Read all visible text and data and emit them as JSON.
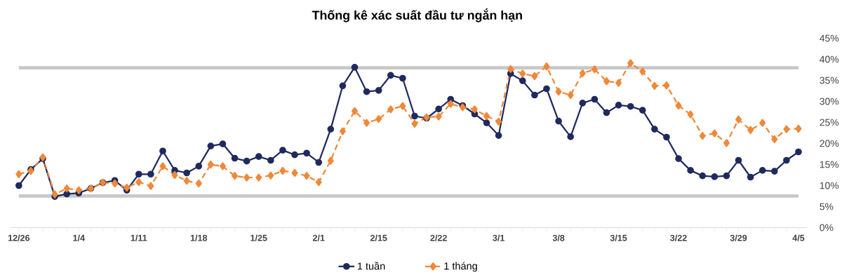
{
  "chart_data": {
    "type": "line",
    "title": "Thống kê xác suất đầu tư ngắn hạn",
    "categories": [
      "12/26",
      null,
      null,
      null,
      null,
      "1/4",
      null,
      null,
      null,
      null,
      "1/11",
      null,
      null,
      null,
      null,
      "1/18",
      null,
      null,
      null,
      null,
      "1/25",
      null,
      null,
      null,
      null,
      "2/1",
      null,
      null,
      null,
      null,
      "2/15",
      null,
      null,
      null,
      null,
      "2/22",
      null,
      null,
      null,
      null,
      "3/1",
      null,
      null,
      null,
      null,
      "3/8",
      null,
      null,
      null,
      null,
      "3/15",
      null,
      null,
      null,
      null,
      "3/22",
      null,
      null,
      null,
      null,
      "3/29",
      null,
      null,
      null,
      null,
      "4/5"
    ],
    "series": [
      {
        "name": "1 tuần",
        "color": "#1f2a5e",
        "marker": "circle",
        "line_style": "solid",
        "values": [
          10.0,
          13.8,
          16.4,
          7.4,
          8.0,
          8.2,
          9.3,
          10.7,
          11.2,
          8.9,
          12.7,
          12.7,
          18.2,
          13.6,
          13.0,
          14.6,
          19.4,
          19.9,
          16.5,
          15.8,
          16.9,
          16.0,
          18.4,
          17.3,
          17.7,
          15.5,
          23.4,
          33.7,
          38.1,
          32.3,
          32.6,
          36.2,
          35.5,
          26.5,
          26.0,
          28.2,
          30.5,
          29.0,
          27.0,
          24.9,
          21.9,
          36.6,
          34.9,
          31.5,
          33.0,
          25.3,
          21.6,
          29.6,
          30.5,
          27.3,
          29.1,
          28.8,
          27.9,
          23.4,
          21.5,
          16.4,
          13.6,
          12.3,
          12.1,
          12.3,
          16.0,
          12.0,
          13.6,
          13.4,
          16.0,
          18.0
        ]
      },
      {
        "name": "1 tháng",
        "color": "#f0883a",
        "marker": "diamond",
        "line_style": "dashed",
        "values": [
          12.7,
          13.5,
          16.7,
          7.9,
          9.3,
          8.9,
          9.3,
          10.7,
          10.5,
          9.5,
          10.8,
          9.9,
          14.6,
          12.5,
          11.1,
          10.5,
          15.0,
          14.6,
          12.3,
          11.9,
          11.9,
          12.4,
          13.5,
          13.0,
          12.3,
          10.8,
          15.9,
          22.9,
          27.7,
          24.9,
          25.8,
          28.1,
          28.9,
          24.7,
          26.2,
          26.4,
          29.4,
          28.6,
          28.1,
          26.5,
          25.2,
          37.7,
          36.6,
          36.0,
          38.3,
          32.3,
          31.5,
          36.7,
          37.6,
          34.8,
          34.4,
          39.1,
          37.1,
          33.7,
          33.8,
          29.0,
          26.9,
          21.8,
          22.4,
          20.1,
          25.7,
          23.2,
          24.9,
          21.0,
          23.4,
          23.5
        ]
      }
    ],
    "ylim": [
      0,
      45
    ],
    "yticks": [
      {
        "value": 0,
        "label": "0%"
      },
      {
        "value": 5,
        "label": "5%"
      },
      {
        "value": 10,
        "label": "10%"
      },
      {
        "value": 15,
        "label": "15%"
      },
      {
        "value": 20,
        "label": "20%"
      },
      {
        "value": 25,
        "label": "25%"
      },
      {
        "value": 30,
        "label": "30%"
      },
      {
        "value": 35,
        "label": "35%"
      },
      {
        "value": 40,
        "label": "40%"
      },
      {
        "value": 45,
        "label": "45%"
      }
    ],
    "ref_lines": [
      {
        "axis": "y",
        "value": 38,
        "color": "#c8c8c8"
      },
      {
        "axis": "y",
        "value": 7.5,
        "color": "#c8c8c8"
      }
    ],
    "grid": false,
    "legend": "bottom"
  }
}
